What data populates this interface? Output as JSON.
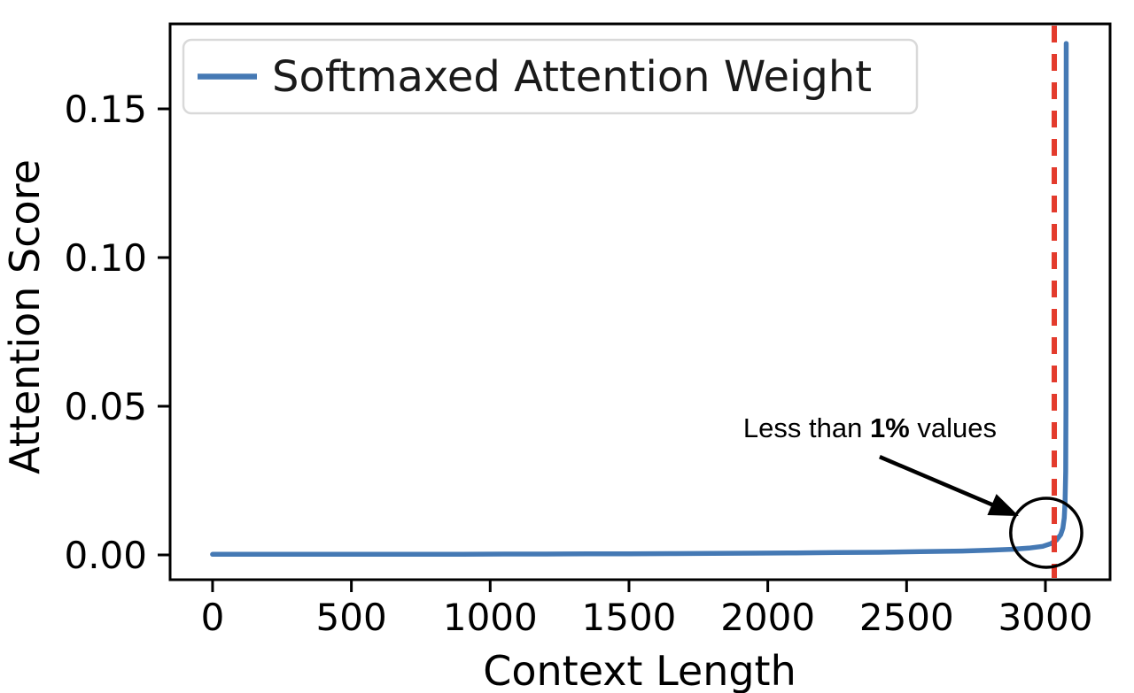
{
  "chart_data": {
    "type": "line",
    "title": "",
    "xlabel": "Context Length",
    "ylabel": "Attention Score",
    "xlim": [
      -153,
      3233
    ],
    "ylim": [
      -0.00833,
      0.17857
    ],
    "grid": false,
    "x_ticks": {
      "values": [
        0,
        500,
        1000,
        1500,
        2000,
        2500,
        3000
      ],
      "labels": [
        "0",
        "500",
        "1000",
        "1500",
        "2000",
        "2500",
        "3000"
      ]
    },
    "y_ticks": {
      "values": [
        0.0,
        0.05,
        0.1,
        0.15
      ],
      "labels": [
        "0.00",
        "0.05",
        "0.10",
        "0.15"
      ]
    },
    "legend": {
      "position": "upper-left",
      "label": "Softmaxed Attention Weight",
      "line_color": "#4579b4"
    },
    "series": [
      {
        "name": "Softmaxed Attention Weight",
        "color": "#4579b4",
        "line_width": 5.5,
        "points": [
          [
            0,
            0.0002
          ],
          [
            150,
            0.0002
          ],
          [
            300,
            0.0002
          ],
          [
            450,
            0.0002
          ],
          [
            600,
            0.0002
          ],
          [
            750,
            0.00025
          ],
          [
            900,
            0.00025
          ],
          [
            1050,
            0.0003
          ],
          [
            1200,
            0.0003
          ],
          [
            1350,
            0.00035
          ],
          [
            1500,
            0.0004
          ],
          [
            1650,
            0.00045
          ],
          [
            1800,
            0.0005
          ],
          [
            1950,
            0.0006
          ],
          [
            2100,
            0.0007
          ],
          [
            2250,
            0.0008
          ],
          [
            2400,
            0.0009
          ],
          [
            2550,
            0.0011
          ],
          [
            2700,
            0.0013
          ],
          [
            2800,
            0.0016
          ],
          [
            2880,
            0.0019
          ],
          [
            2940,
            0.0023
          ],
          [
            2990,
            0.0029
          ],
          [
            3020,
            0.0038
          ],
          [
            3040,
            0.005
          ],
          [
            3055,
            0.0068
          ],
          [
            3063,
            0.009
          ],
          [
            3068,
            0.0125
          ],
          [
            3071,
            0.018
          ],
          [
            3073,
            0.028
          ],
          [
            3074,
            0.05
          ],
          [
            3075,
            0.172
          ]
        ]
      }
    ],
    "vline": {
      "x": 3032,
      "color": "#e33b2d",
      "style": "dashed",
      "line_width": 6,
      "dash": [
        19,
        13
      ]
    },
    "annotation": {
      "prefix": "Less than ",
      "bold": "1%",
      "suffix": " values",
      "color": "#000000",
      "text_anchor": [
        2368,
        0.042
      ],
      "arrow_from": [
        2403,
        0.033
      ],
      "arrow_to": [
        2904,
        0.0131
      ],
      "circle_center": [
        3003,
        0.00744
      ],
      "circle_radius": [
        128,
        0.0116
      ]
    },
    "colors": {
      "axis": "#000000",
      "background": "#ffffff",
      "legend_border": "#d9d9d9"
    }
  }
}
